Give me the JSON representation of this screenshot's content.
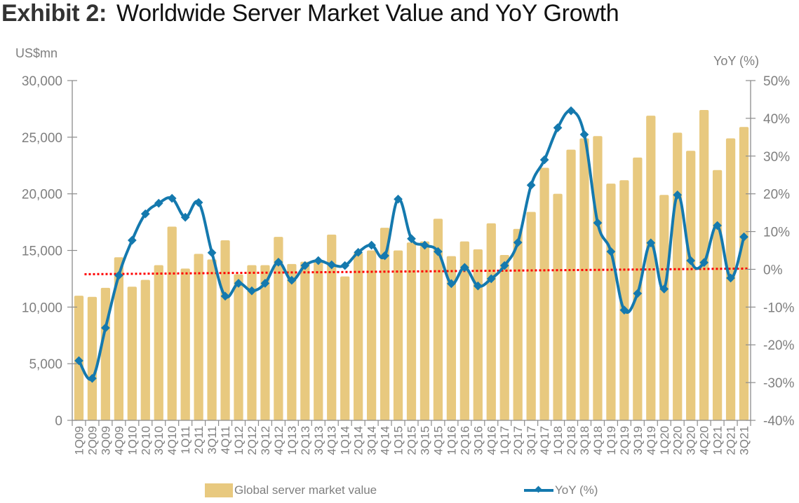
{
  "title": {
    "exhibit": "Exhibit 2:",
    "text": "Worldwide Server Market Value and YoY Growth"
  },
  "chart_data": {
    "type": "bar+line",
    "title": "Worldwide Server Market Value and YoY Growth",
    "ylabel_left": "US$mn",
    "ylabel_right": "YoY (%)",
    "ylim_left": [
      0,
      30000
    ],
    "ylim_right": [
      -40,
      50
    ],
    "yticks_left": [
      "0",
      "5,000",
      "10,000",
      "15,000",
      "20,000",
      "25,000",
      "30,000"
    ],
    "yticks_right": [
      "-40%",
      "-30%",
      "-20%",
      "-10%",
      "0%",
      "10%",
      "20%",
      "30%",
      "40%",
      "50%"
    ],
    "grid": false,
    "legend_position": "bottom",
    "categories": [
      "1Q09",
      "2Q09",
      "3Q09",
      "4Q09",
      "1Q10",
      "2Q10",
      "3Q10",
      "4Q10",
      "1Q11",
      "2Q11",
      "3Q11",
      "4Q11",
      "1Q12",
      "2Q12",
      "3Q12",
      "4Q12",
      "1Q13",
      "2Q13",
      "3Q13",
      "4Q13",
      "1Q14",
      "2Q14",
      "3Q14",
      "4Q14",
      "1Q15",
      "2Q15",
      "3Q15",
      "4Q15",
      "1Q16",
      "2Q16",
      "3Q16",
      "4Q16",
      "1Q17",
      "2Q17",
      "3Q17",
      "4Q17",
      "1Q18",
      "2Q18",
      "3Q18",
      "4Q18",
      "1Q19",
      "2Q19",
      "3Q19",
      "4Q19",
      "1Q20",
      "2Q20",
      "3Q20",
      "4Q20",
      "1Q21",
      "2Q21",
      "3Q21"
    ],
    "series": [
      {
        "name": "Global server market value",
        "type": "bar",
        "axis": "left",
        "color": "#E8C97F",
        "values": [
          11000,
          10900,
          11700,
          14400,
          11800,
          12400,
          13700,
          17100,
          13400,
          14700,
          14200,
          15900,
          12900,
          13700,
          13700,
          16200,
          13800,
          14000,
          14100,
          16400,
          12700,
          14800,
          15000,
          17000,
          15000,
          15700,
          15800,
          17800,
          14500,
          15800,
          15100,
          17400,
          14600,
          16900,
          18400,
          22300,
          20000,
          23900,
          24900,
          25100,
          20900,
          21200,
          23200,
          26900,
          19900,
          25400,
          23800,
          27400,
          22100,
          24900,
          25900
        ]
      },
      {
        "name": "YoY (%)",
        "type": "line",
        "axis": "right",
        "color": "#1479AE",
        "marker": "diamond",
        "values": [
          -24.2,
          -28.9,
          -15.5,
          -1.6,
          7.7,
          14.7,
          17.5,
          18.8,
          13.8,
          17.7,
          4.4,
          -7.1,
          -3.7,
          -5.7,
          -3.7,
          1.9,
          -2.9,
          1.0,
          2.3,
          1.2,
          1.0,
          4.5,
          6.4,
          3.6,
          18.6,
          8.1,
          6.4,
          4.7,
          -3.8,
          0.5,
          -4.4,
          -2.5,
          1.0,
          7.1,
          22.3,
          29.0,
          37.5,
          42.0,
          35.7,
          12.3,
          4.7,
          -10.8,
          -6.4,
          7.0,
          -5.2,
          19.7,
          2.3,
          1.8,
          11.6,
          -2.3,
          8.6
        ]
      },
      {
        "name": "YoY linear trend",
        "type": "trendline",
        "axis": "right",
        "color": "#FF0000",
        "style": "dotted",
        "start": -1.3,
        "end": 0.2
      }
    ]
  },
  "legend": {
    "bar_label": "Global server market value",
    "line_label": "YoY (%)"
  }
}
